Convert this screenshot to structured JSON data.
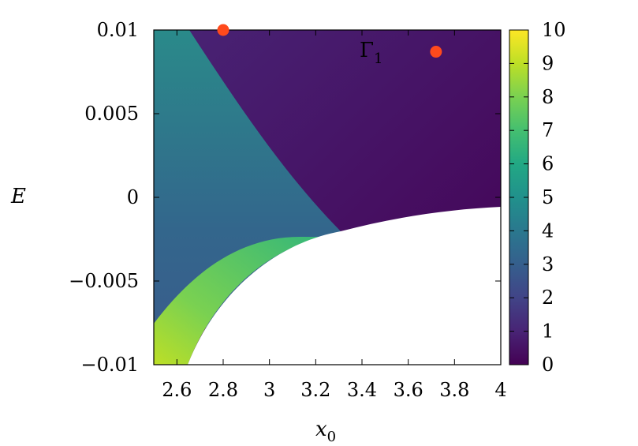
{
  "chart_data": {
    "type": "heatmap",
    "title": "",
    "xlabel": "x",
    "xlabel_sub": "0",
    "ylabel": "E",
    "xlim": [
      2.5,
      4.0
    ],
    "ylim": [
      -0.01,
      0.01
    ],
    "x_ticks": [
      2.6,
      2.8,
      3.0,
      3.2,
      3.4,
      3.6,
      3.8,
      4.0
    ],
    "x_tick_labels": [
      "2.6",
      "2.8",
      "3",
      "3.2",
      "3.4",
      "3.6",
      "3.8",
      "4"
    ],
    "y_ticks": [
      -0.01,
      -0.005,
      0,
      0.005,
      0.01
    ],
    "y_tick_labels": [
      "−0.01",
      "−0.005",
      "0",
      "0.005",
      "0.01"
    ],
    "colorbar": {
      "range": [
        0,
        10
      ],
      "ticks": [
        0,
        1,
        2,
        3,
        4,
        5,
        6,
        7,
        8,
        9,
        10
      ],
      "tick_labels": [
        "0",
        "1",
        "2",
        "3",
        "4",
        "5",
        "6",
        "7",
        "8",
        "9",
        "10"
      ],
      "colormap": "viridis"
    },
    "regions": [
      {
        "region": "upper-right",
        "value": 0.5
      },
      {
        "region": "left-middle",
        "value": 4.5
      },
      {
        "region": "lower-left band",
        "value": 7.5
      },
      {
        "region": "lower-left corner",
        "value": 9.5
      },
      {
        "region": "bottom-right",
        "value": null
      }
    ],
    "markers": [
      {
        "x": 2.8,
        "y": 0.01,
        "color": "#ff4a1c"
      },
      {
        "x": 3.72,
        "y": 0.0087,
        "color": "#ff4a1c"
      }
    ],
    "annotations": [
      {
        "text": "Γ",
        "sub": "1",
        "x": 3.4,
        "y": 0.0087
      }
    ]
  }
}
